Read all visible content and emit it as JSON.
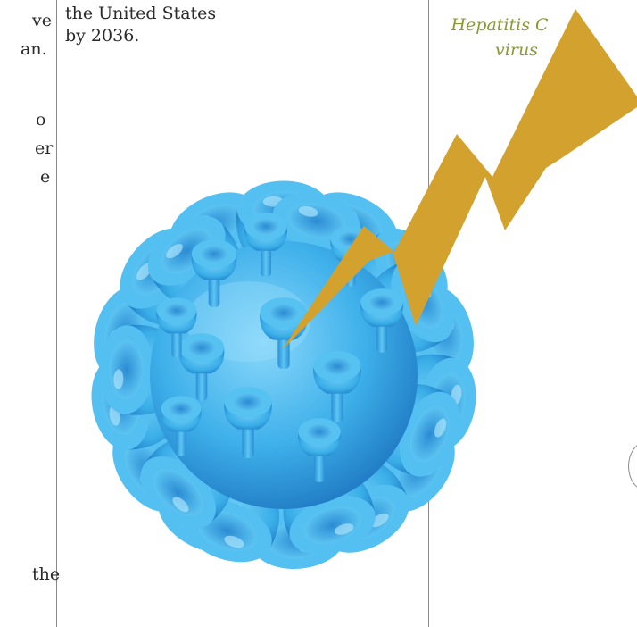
{
  "left_column": {
    "fragments": [
      "ve",
      "an.",
      "o",
      "er",
      "e",
      "the"
    ]
  },
  "middle_column": {
    "line1": "the United States",
    "line2": "by 2036."
  },
  "caption": {
    "line1": "Hepatitis C",
    "line2": "virus"
  },
  "colors": {
    "virus_main": "#45b7ec",
    "virus_shadow": "#1f7fc6",
    "virus_highlight": "#a9e3fb",
    "bolt": "#d3a12d",
    "caption": "#8a9a32",
    "rules": "#8a8a8a"
  },
  "illustration": {
    "virus_name": "hepatitis-c-virus-illustration",
    "bolt_name": "lightning-bolt-graphic"
  }
}
